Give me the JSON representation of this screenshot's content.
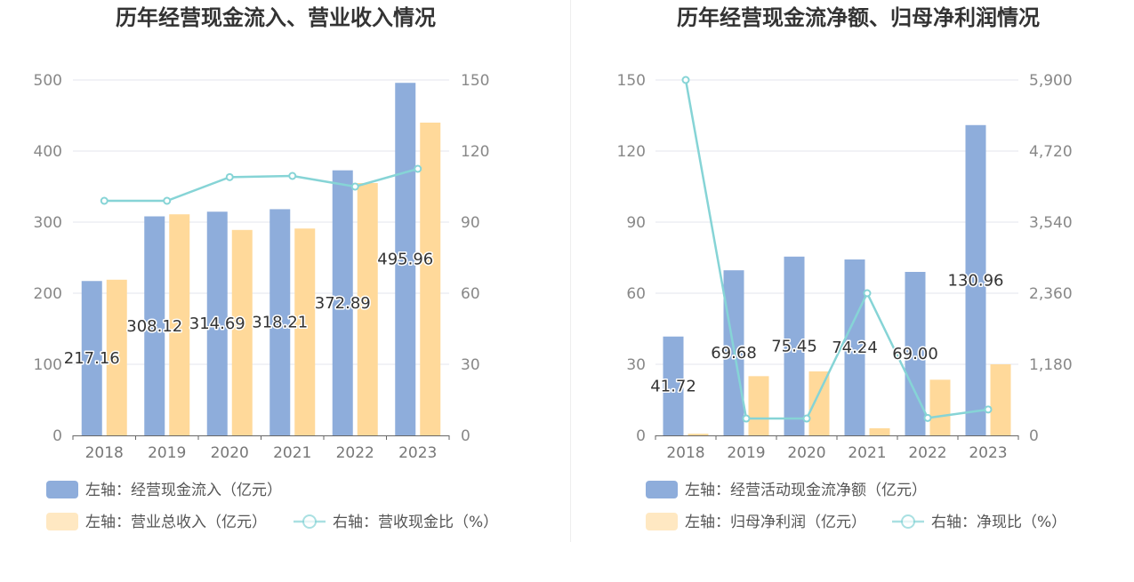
{
  "charts": [
    {
      "title": "历年经营现金流入、营业收入情况",
      "left_ticks": [
        "0",
        "100",
        "200",
        "300",
        "400",
        "500"
      ],
      "right_ticks": [
        "0",
        "30",
        "60",
        "90",
        "120",
        "150"
      ],
      "legend": {
        "bar1": "左轴：经营现金流入（亿元）",
        "bar2": "左轴：营业总收入（亿元）",
        "line": "右轴：营收现金比（%）"
      },
      "data_labels": [
        "217.16",
        "308.12",
        "314.69",
        "318.21",
        "372.89",
        "495.96"
      ]
    },
    {
      "title": "历年经营现金流净额、归母净利润情况",
      "left_ticks": [
        "0",
        "30",
        "60",
        "90",
        "120",
        "150"
      ],
      "right_ticks": [
        "0",
        "1,180",
        "2,360",
        "3,540",
        "4,720",
        "5,900"
      ],
      "legend": {
        "bar1": "左轴：经营活动现金流净额（亿元）",
        "bar2": "左轴：归母净利润（亿元）",
        "line": "右轴：净现比（%）"
      },
      "data_labels": [
        "41.72",
        "69.68",
        "75.45",
        "74.24",
        "69.00",
        "130.96"
      ]
    }
  ],
  "colors": {
    "bar1": "#8eaddb",
    "bar2": "#ffd99a",
    "line": "#86d4d6",
    "grid": "#e3e6ec",
    "axis": "#666666"
  },
  "chart_data": [
    {
      "type": "bar",
      "title": "历年经营现金流入、营业收入情况",
      "categories": [
        "2018",
        "2019",
        "2020",
        "2021",
        "2022",
        "2023"
      ],
      "series": [
        {
          "name": "左轴：经营现金流入（亿元）",
          "axis": "left",
          "values": [
            217.16,
            308.12,
            314.69,
            318.21,
            372.89,
            495.96
          ]
        },
        {
          "name": "左轴：营业总收入（亿元）",
          "axis": "left",
          "values": [
            219,
            311,
            289,
            291,
            355,
            440
          ]
        },
        {
          "name": "右轴：营收现金比（%）",
          "axis": "right",
          "type": "line",
          "values": [
            99,
            99,
            109,
            109.5,
            105,
            112.5
          ]
        }
      ],
      "ylim_left": [
        0,
        500
      ],
      "ylim_right": [
        0,
        150
      ],
      "grid": true,
      "legend_position": "bottom"
    },
    {
      "type": "bar",
      "title": "历年经营现金流净额、归母净利润情况",
      "categories": [
        "2018",
        "2019",
        "2020",
        "2021",
        "2022",
        "2023"
      ],
      "series": [
        {
          "name": "左轴：经营活动现金流净额（亿元）",
          "axis": "left",
          "values": [
            41.72,
            69.68,
            75.45,
            74.24,
            69.0,
            130.96
          ]
        },
        {
          "name": "左轴：归母净利润（亿元）",
          "axis": "left",
          "values": [
            0.7,
            25,
            27,
            3,
            23.5,
            30
          ]
        },
        {
          "name": "右轴：净现比（%）",
          "axis": "right",
          "type": "line",
          "values": [
            5900,
            280,
            280,
            2360,
            290,
            430
          ]
        }
      ],
      "ylim_left": [
        0,
        150
      ],
      "ylim_right": [
        0,
        5900
      ],
      "grid": true,
      "legend_position": "bottom"
    }
  ]
}
